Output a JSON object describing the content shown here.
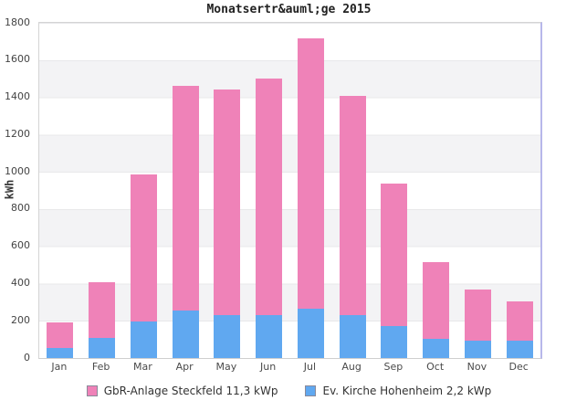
{
  "chart_data": {
    "type": "bar",
    "stacked": true,
    "title": "Monatsertr&auml;ge 2015",
    "xlabel": "",
    "ylabel": "kWh",
    "ylim": [
      0,
      1800
    ],
    "ytick_step": 200,
    "yticks": [
      0,
      200,
      400,
      600,
      800,
      1000,
      1200,
      1400,
      1600,
      1800
    ],
    "grid": "horizontal-bands-alternating",
    "legend_position": "bottom-center",
    "categories": [
      "Jan",
      "Feb",
      "Mar",
      "Apr",
      "May",
      "Jun",
      "Jul",
      "Aug",
      "Sep",
      "Oct",
      "Nov",
      "Dec"
    ],
    "series": [
      {
        "name": "GbR-Anlage Steckfeld 11,3 kWp",
        "color": "#ef82b8",
        "stack_position": "top",
        "values": [
          135,
          295,
          790,
          1205,
          1210,
          1270,
          1450,
          1180,
          765,
          410,
          275,
          210
        ]
      },
      {
        "name": "Ev. Kirche Hohenheim 2,2 kWp",
        "color": "#60a8f0",
        "stack_position": "bottom",
        "values": [
          55,
          110,
          195,
          255,
          230,
          230,
          265,
          230,
          170,
          105,
          95,
          95
        ]
      }
    ],
    "stacked_totals": [
      190,
      405,
      985,
      1460,
      1440,
      1500,
      1715,
      1410,
      935,
      515,
      370,
      305
    ]
  },
  "style_colors": {
    "band_gray": "#f3f3f5",
    "gridline": "#e8e8ea",
    "plot_border": "#d4d4d4",
    "plot_border_right": "#b7b7ea",
    "title_text": "#222222",
    "tick_text": "#444444",
    "legend_text": "#333333"
  }
}
